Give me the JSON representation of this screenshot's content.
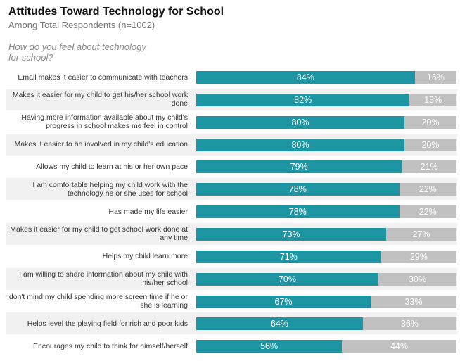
{
  "title": "Attitudes Toward Technology for School",
  "subtitle": "Among Total Respondents (n=1002)",
  "question": "How do you feel about technology for school?",
  "chart_data": {
    "type": "bar",
    "orientation": "horizontal-stacked-100",
    "title": "Attitudes Toward Technology for School",
    "colors": {
      "positive": "#1e95a3",
      "negative": "#c0c0c0"
    },
    "categories": [
      "Email makes it easier to communicate with teachers",
      "Makes it easier for my child to get his/her school work done",
      "Having more information available about my child's progress in school makes me feel in control",
      "Makes it easier to be involved in my child's education",
      "Allows my child to learn at his or her own pace",
      "I am comfortable helping my child work with the technology he or she uses for school",
      "Has made my life easier",
      "Makes it easier for my child to get school work done at any time",
      "Helps my child learn more",
      "I am willing to share information about my child with his/her school",
      "I don't mind my child spending more screen time if he or she is learning",
      "Helps level the playing field for rich and poor kids",
      "Encourages my child to think for himself/herself"
    ],
    "series": [
      {
        "values": [
          84,
          82,
          80,
          80,
          79,
          78,
          78,
          73,
          71,
          70,
          67,
          64,
          56
        ]
      },
      {
        "values": [
          16,
          18,
          20,
          20,
          21,
          22,
          22,
          27,
          29,
          30,
          33,
          36,
          44
        ]
      }
    ],
    "xlim": [
      0,
      100
    ]
  }
}
